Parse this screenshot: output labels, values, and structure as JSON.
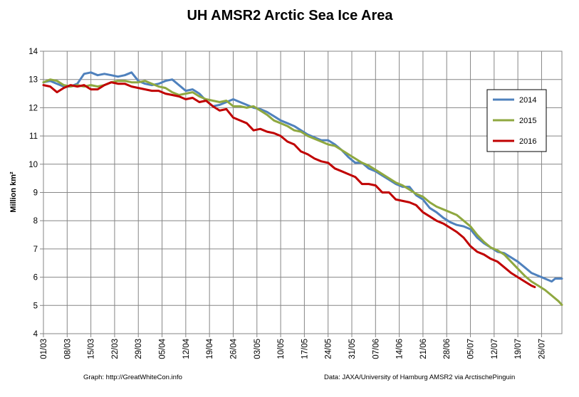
{
  "chart_data": {
    "type": "line",
    "title": "UH AMSR2 Arctic Sea Ice Area",
    "ylabel": "Million km²",
    "xlabel": "",
    "ylim": [
      4,
      14
    ],
    "yticks": [
      4,
      5,
      6,
      7,
      8,
      9,
      10,
      11,
      12,
      13,
      14
    ],
    "x_day_range": [
      0,
      153
    ],
    "x_ticks": [
      {
        "day": 0,
        "label": "01/03"
      },
      {
        "day": 7,
        "label": "08/03"
      },
      {
        "day": 14,
        "label": "15/03"
      },
      {
        "day": 21,
        "label": "22/03"
      },
      {
        "day": 28,
        "label": "29/03"
      },
      {
        "day": 35,
        "label": "05/04"
      },
      {
        "day": 42,
        "label": "12/04"
      },
      {
        "day": 49,
        "label": "19/04"
      },
      {
        "day": 56,
        "label": "26/04"
      },
      {
        "day": 63,
        "label": "03/05"
      },
      {
        "day": 70,
        "label": "10/05"
      },
      {
        "day": 77,
        "label": "17/05"
      },
      {
        "day": 84,
        "label": "24/05"
      },
      {
        "day": 91,
        "label": "31/05"
      },
      {
        "day": 98,
        "label": "07/06"
      },
      {
        "day": 105,
        "label": "14/06"
      },
      {
        "day": 112,
        "label": "21/06"
      },
      {
        "day": 119,
        "label": "28/06"
      },
      {
        "day": 126,
        "label": "05/07"
      },
      {
        "day": 133,
        "label": "12/07"
      },
      {
        "day": 140,
        "label": "19/07"
      },
      {
        "day": 147,
        "label": "26/07"
      }
    ],
    "grid": true,
    "legend_position": "right",
    "series": [
      {
        "name": "2014",
        "color": "#4f81bd",
        "points": [
          [
            0,
            12.9
          ],
          [
            2,
            12.95
          ],
          [
            4,
            12.85
          ],
          [
            6,
            12.75
          ],
          [
            8,
            12.75
          ],
          [
            10,
            12.85
          ],
          [
            12,
            13.2
          ],
          [
            14,
            13.25
          ],
          [
            16,
            13.15
          ],
          [
            18,
            13.2
          ],
          [
            20,
            13.15
          ],
          [
            22,
            13.1
          ],
          [
            24,
            13.15
          ],
          [
            26,
            13.25
          ],
          [
            28,
            12.95
          ],
          [
            30,
            12.85
          ],
          [
            32,
            12.8
          ],
          [
            34,
            12.85
          ],
          [
            36,
            12.95
          ],
          [
            38,
            13.0
          ],
          [
            40,
            12.8
          ],
          [
            42,
            12.6
          ],
          [
            44,
            12.65
          ],
          [
            46,
            12.5
          ],
          [
            48,
            12.25
          ],
          [
            50,
            12.05
          ],
          [
            52,
            12.1
          ],
          [
            54,
            12.2
          ],
          [
            56,
            12.3
          ],
          [
            58,
            12.2
          ],
          [
            60,
            12.1
          ],
          [
            62,
            12.0
          ],
          [
            64,
            11.95
          ],
          [
            66,
            11.85
          ],
          [
            68,
            11.7
          ],
          [
            70,
            11.55
          ],
          [
            72,
            11.45
          ],
          [
            74,
            11.35
          ],
          [
            76,
            11.2
          ],
          [
            78,
            11.05
          ],
          [
            80,
            10.95
          ],
          [
            82,
            10.85
          ],
          [
            84,
            10.85
          ],
          [
            86,
            10.7
          ],
          [
            88,
            10.5
          ],
          [
            90,
            10.25
          ],
          [
            92,
            10.05
          ],
          [
            94,
            10.05
          ],
          [
            96,
            9.85
          ],
          [
            98,
            9.75
          ],
          [
            100,
            9.6
          ],
          [
            102,
            9.45
          ],
          [
            104,
            9.3
          ],
          [
            106,
            9.2
          ],
          [
            108,
            9.2
          ],
          [
            110,
            8.9
          ],
          [
            112,
            8.75
          ],
          [
            114,
            8.45
          ],
          [
            116,
            8.3
          ],
          [
            118,
            8.1
          ],
          [
            120,
            7.95
          ],
          [
            122,
            7.85
          ],
          [
            124,
            7.8
          ],
          [
            126,
            7.7
          ],
          [
            128,
            7.4
          ],
          [
            130,
            7.2
          ],
          [
            132,
            7.05
          ],
          [
            134,
            6.9
          ],
          [
            136,
            6.85
          ],
          [
            138,
            6.7
          ],
          [
            140,
            6.55
          ],
          [
            142,
            6.35
          ],
          [
            144,
            6.15
          ],
          [
            146,
            6.05
          ],
          [
            148,
            5.95
          ],
          [
            150,
            5.85
          ],
          [
            151,
            5.95
          ],
          [
            153,
            5.95
          ]
        ]
      },
      {
        "name": "2015",
        "color": "#8fa840",
        "points": [
          [
            0,
            12.9
          ],
          [
            2,
            13.0
          ],
          [
            4,
            12.95
          ],
          [
            6,
            12.8
          ],
          [
            8,
            12.75
          ],
          [
            10,
            12.8
          ],
          [
            12,
            12.75
          ],
          [
            14,
            12.8
          ],
          [
            16,
            12.75
          ],
          [
            18,
            12.8
          ],
          [
            20,
            12.9
          ],
          [
            22,
            12.95
          ],
          [
            24,
            12.95
          ],
          [
            26,
            12.9
          ],
          [
            28,
            12.9
          ],
          [
            30,
            12.95
          ],
          [
            32,
            12.85
          ],
          [
            34,
            12.75
          ],
          [
            36,
            12.7
          ],
          [
            38,
            12.55
          ],
          [
            40,
            12.45
          ],
          [
            42,
            12.5
          ],
          [
            44,
            12.55
          ],
          [
            46,
            12.4
          ],
          [
            48,
            12.3
          ],
          [
            50,
            12.25
          ],
          [
            52,
            12.2
          ],
          [
            54,
            12.25
          ],
          [
            56,
            12.05
          ],
          [
            58,
            12.05
          ],
          [
            60,
            12.0
          ],
          [
            62,
            12.05
          ],
          [
            64,
            11.9
          ],
          [
            66,
            11.75
          ],
          [
            68,
            11.55
          ],
          [
            70,
            11.45
          ],
          [
            72,
            11.35
          ],
          [
            74,
            11.2
          ],
          [
            76,
            11.15
          ],
          [
            78,
            11.0
          ],
          [
            80,
            10.9
          ],
          [
            82,
            10.8
          ],
          [
            84,
            10.7
          ],
          [
            86,
            10.65
          ],
          [
            88,
            10.5
          ],
          [
            90,
            10.35
          ],
          [
            92,
            10.2
          ],
          [
            94,
            10.05
          ],
          [
            96,
            9.95
          ],
          [
            98,
            9.8
          ],
          [
            100,
            9.65
          ],
          [
            102,
            9.5
          ],
          [
            104,
            9.35
          ],
          [
            106,
            9.25
          ],
          [
            108,
            9.1
          ],
          [
            110,
            8.95
          ],
          [
            112,
            8.85
          ],
          [
            114,
            8.65
          ],
          [
            116,
            8.5
          ],
          [
            118,
            8.4
          ],
          [
            120,
            8.3
          ],
          [
            122,
            8.2
          ],
          [
            124,
            8.0
          ],
          [
            126,
            7.8
          ],
          [
            128,
            7.5
          ],
          [
            130,
            7.25
          ],
          [
            132,
            7.05
          ],
          [
            134,
            6.95
          ],
          [
            136,
            6.8
          ],
          [
            138,
            6.55
          ],
          [
            140,
            6.3
          ],
          [
            142,
            6.05
          ],
          [
            144,
            5.85
          ],
          [
            146,
            5.7
          ],
          [
            148,
            5.55
          ],
          [
            150,
            5.35
          ],
          [
            152,
            5.15
          ],
          [
            153,
            5.02
          ]
        ]
      },
      {
        "name": "2016",
        "color": "#c00000",
        "points": [
          [
            0,
            12.8
          ],
          [
            2,
            12.75
          ],
          [
            4,
            12.55
          ],
          [
            6,
            12.7
          ],
          [
            8,
            12.8
          ],
          [
            10,
            12.75
          ],
          [
            12,
            12.8
          ],
          [
            14,
            12.65
          ],
          [
            16,
            12.65
          ],
          [
            18,
            12.8
          ],
          [
            20,
            12.9
          ],
          [
            22,
            12.85
          ],
          [
            24,
            12.85
          ],
          [
            26,
            12.75
          ],
          [
            28,
            12.7
          ],
          [
            30,
            12.65
          ],
          [
            32,
            12.6
          ],
          [
            34,
            12.6
          ],
          [
            36,
            12.5
          ],
          [
            38,
            12.45
          ],
          [
            40,
            12.4
          ],
          [
            42,
            12.3
          ],
          [
            44,
            12.35
          ],
          [
            46,
            12.2
          ],
          [
            48,
            12.25
          ],
          [
            50,
            12.05
          ],
          [
            52,
            11.9
          ],
          [
            54,
            11.95
          ],
          [
            56,
            11.65
          ],
          [
            58,
            11.55
          ],
          [
            60,
            11.45
          ],
          [
            62,
            11.2
          ],
          [
            64,
            11.25
          ],
          [
            66,
            11.15
          ],
          [
            68,
            11.1
          ],
          [
            70,
            11.0
          ],
          [
            72,
            10.8
          ],
          [
            74,
            10.7
          ],
          [
            76,
            10.45
          ],
          [
            78,
            10.35
          ],
          [
            80,
            10.2
          ],
          [
            82,
            10.1
          ],
          [
            84,
            10.05
          ],
          [
            86,
            9.85
          ],
          [
            88,
            9.75
          ],
          [
            90,
            9.65
          ],
          [
            92,
            9.55
          ],
          [
            94,
            9.3
          ],
          [
            96,
            9.3
          ],
          [
            98,
            9.25
          ],
          [
            100,
            9.0
          ],
          [
            102,
            9.0
          ],
          [
            104,
            8.75
          ],
          [
            106,
            8.7
          ],
          [
            108,
            8.65
          ],
          [
            110,
            8.55
          ],
          [
            112,
            8.3
          ],
          [
            114,
            8.15
          ],
          [
            116,
            8.0
          ],
          [
            118,
            7.9
          ],
          [
            120,
            7.75
          ],
          [
            122,
            7.6
          ],
          [
            124,
            7.4
          ],
          [
            126,
            7.1
          ],
          [
            128,
            6.9
          ],
          [
            130,
            6.8
          ],
          [
            132,
            6.65
          ],
          [
            134,
            6.55
          ],
          [
            136,
            6.35
          ],
          [
            138,
            6.15
          ],
          [
            140,
            6.0
          ],
          [
            142,
            5.85
          ],
          [
            144,
            5.7
          ],
          [
            145,
            5.65
          ]
        ]
      }
    ]
  },
  "footer": {
    "left": "Graph: http://GreatWhiteCon.info",
    "right": "Data: JAXA/University of Hamburg AMSR2 via  ArctischePinguin"
  }
}
